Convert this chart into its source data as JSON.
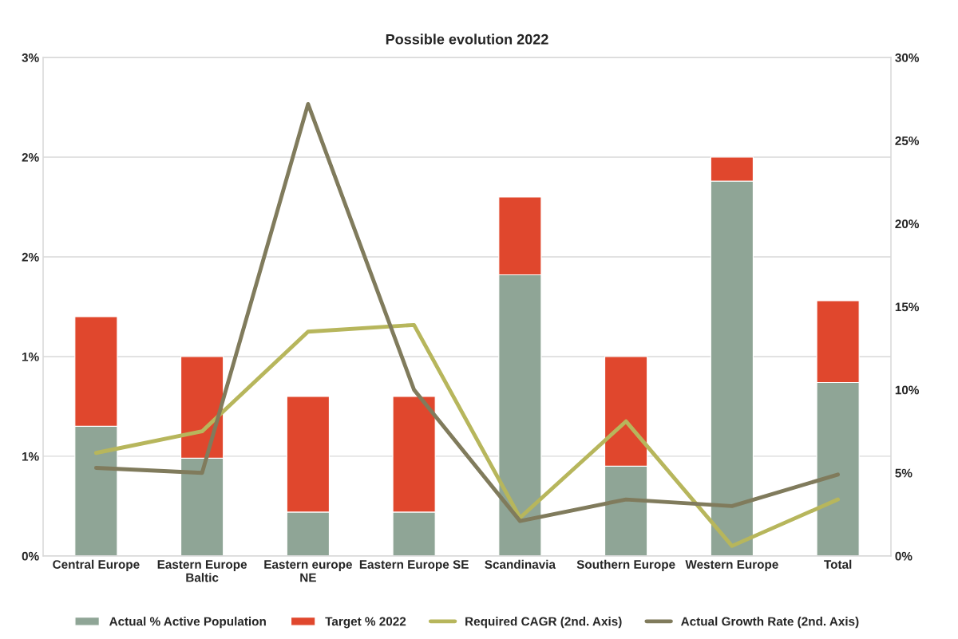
{
  "chart_data": {
    "type": "bar",
    "title": "Possible evolution 2022",
    "stacked": true,
    "categories": [
      "Central Europe",
      "Eastern Europe\nBaltic",
      "Eastern europe\nNE",
      "Eastern Europe SE",
      "Scandinavia",
      "Southern Europe",
      "Western Europe",
      "Total"
    ],
    "series": [
      {
        "name": "Actual % Active Population",
        "color": "#8fa596",
        "values": [
          0.65,
          0.49,
          0.22,
          0.22,
          1.41,
          0.45,
          1.88,
          0.87
        ]
      },
      {
        "name": "Target % 2022",
        "color": "#e0472d",
        "values": [
          0.55,
          0.51,
          0.58,
          0.58,
          0.39,
          0.55,
          0.12,
          0.41
        ]
      },
      {
        "name": "Required CAGR (2nd. Axis)",
        "type": "line",
        "axis": "y2",
        "color": "#b7b65c",
        "values": [
          6.2,
          7.5,
          13.5,
          13.9,
          2.3,
          8.1,
          0.6,
          3.4
        ]
      },
      {
        "name": "Actual Growth Rate (2nd. Axis)",
        "type": "line",
        "axis": "y2",
        "color": "#807b5c",
        "values": [
          5.3,
          5.0,
          27.2,
          10.0,
          2.1,
          3.4,
          3.0,
          4.9
        ]
      }
    ],
    "ylim": [
      0,
      2.5
    ],
    "yticks": [
      {
        "value": 0,
        "label": "0%"
      },
      {
        "value": 0.5,
        "label": "1%"
      },
      {
        "value": 1.0,
        "label": "1%"
      },
      {
        "value": 1.5,
        "label": "2%"
      },
      {
        "value": 2.0,
        "label": "2%"
      },
      {
        "value": 2.5,
        "label": "3%"
      }
    ],
    "y2lim": [
      0,
      30
    ],
    "y2ticks": [
      {
        "value": 0,
        "label": "0%"
      },
      {
        "value": 5,
        "label": "5%"
      },
      {
        "value": 10,
        "label": "10%"
      },
      {
        "value": 15,
        "label": "15%"
      },
      {
        "value": 20,
        "label": "20%"
      },
      {
        "value": 25,
        "label": "25%"
      },
      {
        "value": 30,
        "label": "30%"
      }
    ],
    "grid": "y",
    "legend": "bottom",
    "line_style": "solid"
  }
}
